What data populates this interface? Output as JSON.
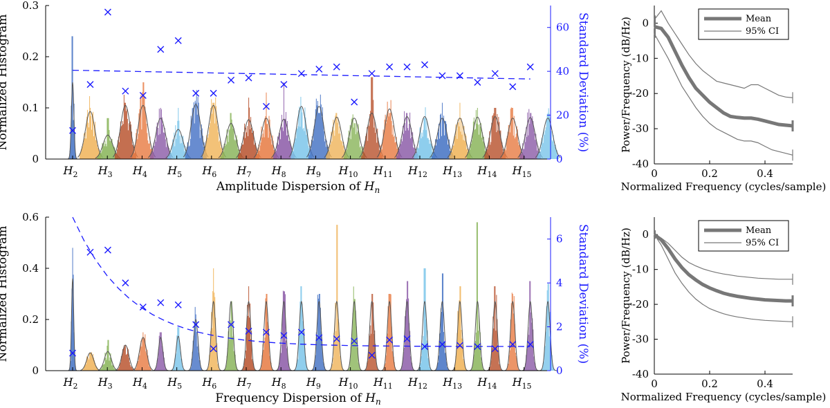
{
  "chart_data": [
    {
      "type": "histogram+scatter",
      "xlabel_main": "Amplitude Dispersion of ",
      "xlabel_var": "H",
      "xlabel_sub": "n",
      "ylabel_left": "Normalized Histogram",
      "ylabel_right": "Standard Deviation (%)",
      "yleft": {
        "lim": [
          0,
          0.3
        ],
        "ticks": [
          "0",
          "0.1",
          "0.2",
          "0.3"
        ],
        "tick_values": [
          0,
          0.1,
          0.2,
          0.3
        ]
      },
      "yright": {
        "lim": [
          0,
          70
        ],
        "ticks": [
          "0",
          "20",
          "40",
          "60"
        ],
        "tick_values": [
          0,
          20,
          40,
          60
        ]
      },
      "harmonic_labels": [
        "2",
        "3",
        "4",
        "5",
        "6",
        "7",
        "8",
        "9",
        "10",
        "11",
        "12",
        "13",
        "14",
        "15"
      ],
      "hist_colors": [
        "#4472c4",
        "#f0b45a",
        "#8ab55a",
        "#b9532f",
        "#e87d45",
        "#8c5ca8",
        "#7bc6ea"
      ],
      "histograms": {
        "peaks": [
          0.24,
          0.1,
          0.08,
          0.11,
          0.15,
          0.1,
          0.1,
          0.11,
          0.11,
          0.09,
          0.12,
          0.13,
          0.15,
          0.1,
          0.09,
          0.09,
          0.07,
          0.16,
          0.09,
          0.09,
          0.08,
          0.11,
          0.11,
          0.1,
          0.1,
          0.1,
          0.09,
          0.09
        ],
        "fits": [
          0.15,
          0.093,
          0.047,
          0.105,
          0.105,
          0.08,
          0.058,
          0.107,
          0.105,
          0.07,
          0.077,
          0.08,
          0.078,
          0.103,
          0.103,
          0.082,
          0.08,
          0.09,
          0.098,
          0.083,
          0.083,
          0.08,
          0.08,
          0.082,
          0.083,
          0.08,
          0.081,
          0.08
        ]
      },
      "std_points": [
        13,
        34,
        67,
        31,
        29,
        50,
        54,
        30,
        30,
        36,
        37,
        24,
        34,
        39,
        41,
        42,
        26,
        39,
        42,
        42,
        43,
        38,
        38,
        35,
        39,
        33,
        42
      ],
      "trend": {
        "start": 40.5,
        "end": 36.5
      }
    },
    {
      "type": "histogram+scatter",
      "xlabel_main": "Frequency Dispersion of ",
      "xlabel_var": "H",
      "xlabel_sub": "n",
      "ylabel_left": "Normalized Histogram",
      "ylabel_right": "Standard Deviation (%)",
      "yleft": {
        "lim": [
          0,
          0.6
        ],
        "ticks": [
          "0",
          "0.2",
          "0.4",
          "0.6"
        ],
        "tick_values": [
          0,
          0.2,
          0.4,
          0.6
        ]
      },
      "yright": {
        "lim": [
          0,
          7
        ],
        "ticks": [
          "0",
          "2",
          "4",
          "6"
        ],
        "tick_values": [
          0,
          2,
          4,
          6
        ]
      },
      "harmonic_labels": [
        "2",
        "3",
        "4",
        "5",
        "6",
        "7",
        "8",
        "9",
        "10",
        "11",
        "12",
        "13",
        "14",
        "15"
      ],
      "hist_colors": [
        "#4472c4",
        "#f0b45a",
        "#8ab55a",
        "#b9532f",
        "#e87d45",
        "#8c5ca8",
        "#7bc6ea"
      ],
      "histograms": {
        "peaks": [
          0.48,
          0.07,
          0.12,
          0.1,
          0.15,
          0.15,
          0.17,
          0.22,
          0.4,
          0.27,
          0.33,
          0.3,
          0.31,
          0.33,
          0.3,
          0.57,
          0.28,
          0.3,
          0.3,
          0.35,
          0.4,
          0.38,
          0.33,
          0.58,
          0.33,
          0.3,
          0.35,
          0.34
        ],
        "fits": [
          0.36,
          0.07,
          0.075,
          0.1,
          0.13,
          0.13,
          0.135,
          0.2,
          0.27,
          0.27,
          0.27,
          0.27,
          0.27,
          0.27,
          0.27,
          0.27,
          0.27,
          0.27,
          0.27,
          0.27,
          0.27,
          0.27,
          0.27,
          0.27,
          0.27,
          0.27,
          0.27,
          0.27
        ]
      },
      "std_points": [
        0.8,
        5.4,
        5.5,
        4.0,
        2.9,
        3.1,
        3.0,
        2.1,
        1.0,
        2.1,
        1.8,
        1.75,
        1.6,
        1.75,
        1.5,
        1.45,
        1.35,
        0.7,
        1.4,
        1.45,
        1.1,
        1.2,
        1.15,
        1.1,
        1.0,
        1.2,
        1.2
      ],
      "trend": {
        "start": 7.0,
        "end": 1.1
      }
    },
    {
      "type": "line",
      "xlabel": "Normalized Frequency (cycles/sample)",
      "ylabel": "Power/Frequency (dB/Hz)",
      "xlim": [
        0,
        0.5
      ],
      "ylim": [
        -40,
        5
      ],
      "xticks": [
        "0",
        "0.2",
        "0.4"
      ],
      "xtick_values": [
        0,
        0.2,
        0.4
      ],
      "yticks": [
        "0",
        "-10",
        "-20",
        "-30",
        "-40"
      ],
      "ytick_values": [
        0,
        -10,
        -20,
        -30,
        -40
      ],
      "legend": [
        "Mean",
        "95% CI"
      ],
      "x": [
        0,
        0.025,
        0.05,
        0.075,
        0.1,
        0.125,
        0.15,
        0.175,
        0.2,
        0.225,
        0.25,
        0.275,
        0.3,
        0.325,
        0.35,
        0.375,
        0.4,
        0.425,
        0.45,
        0.475,
        0.5
      ],
      "series": [
        {
          "name": "Mean",
          "values": [
            -1,
            -1.5,
            -4,
            -8,
            -12,
            -15.5,
            -18.5,
            -20.5,
            -22.5,
            -24,
            -25.5,
            -26.5,
            -26.8,
            -27,
            -27,
            -27.3,
            -27.8,
            -28.3,
            -28.8,
            -29,
            -29.2
          ]
        },
        {
          "name": "95% CI upper",
          "values": [
            1,
            3.5,
            0,
            -3,
            -6,
            -9,
            -11.5,
            -13.5,
            -15,
            -16.5,
            -17,
            -17.5,
            -18,
            -18.5,
            -17.5,
            -17.5,
            -18.5,
            -19.5,
            -20.5,
            -21,
            -21.2
          ]
        },
        {
          "name": "95% CI lower",
          "values": [
            -3,
            -6.5,
            -10,
            -14,
            -18,
            -21,
            -24,
            -26.5,
            -28.5,
            -30,
            -31,
            -32,
            -33,
            -33.5,
            -33.5,
            -34,
            -35,
            -36,
            -36.5,
            -37,
            -37.5
          ]
        }
      ]
    },
    {
      "type": "line",
      "xlabel": "Normalized Frequency (cycles/sample)",
      "ylabel": "Power/Frequency (dB/Hz)",
      "xlim": [
        0,
        0.5
      ],
      "ylim": [
        -40,
        5
      ],
      "xticks": [
        "0",
        "0.2",
        "0.4"
      ],
      "xtick_values": [
        0,
        0.2,
        0.4
      ],
      "yticks": [
        "0",
        "-10",
        "-20",
        "-30",
        "-40"
      ],
      "ytick_values": [
        0,
        -10,
        -20,
        -30,
        -40
      ],
      "legend": [
        "Mean",
        "95% CI"
      ],
      "x": [
        0,
        0.025,
        0.05,
        0.075,
        0.1,
        0.125,
        0.15,
        0.175,
        0.2,
        0.225,
        0.25,
        0.275,
        0.3,
        0.325,
        0.35,
        0.375,
        0.4,
        0.425,
        0.45,
        0.475,
        0.5
      ],
      "series": [
        {
          "name": "Mean",
          "values": [
            0,
            -1.5,
            -4,
            -7,
            -9.5,
            -11.5,
            -13,
            -14.3,
            -15.3,
            -16.1,
            -16.8,
            -17.3,
            -17.7,
            -18,
            -18.3,
            -18.5,
            -18.7,
            -18.8,
            -18.9,
            -19,
            -19
          ]
        },
        {
          "name": "95% CI upper",
          "values": [
            0,
            -1,
            -2.5,
            -4.5,
            -6.5,
            -8,
            -9,
            -9.8,
            -10.4,
            -10.9,
            -11.3,
            -11.6,
            -11.9,
            -12.1,
            -12.3,
            -12.5,
            -12.6,
            -12.7,
            -12.8,
            -12.8,
            -12.8
          ]
        },
        {
          "name": "95% CI lower",
          "values": [
            0,
            -3,
            -7,
            -11,
            -14,
            -16.5,
            -18.5,
            -20,
            -21.2,
            -22,
            -22.7,
            -23.2,
            -23.6,
            -23.9,
            -24.2,
            -24.4,
            -24.6,
            -24.7,
            -24.8,
            -24.9,
            -25
          ]
        }
      ]
    }
  ]
}
